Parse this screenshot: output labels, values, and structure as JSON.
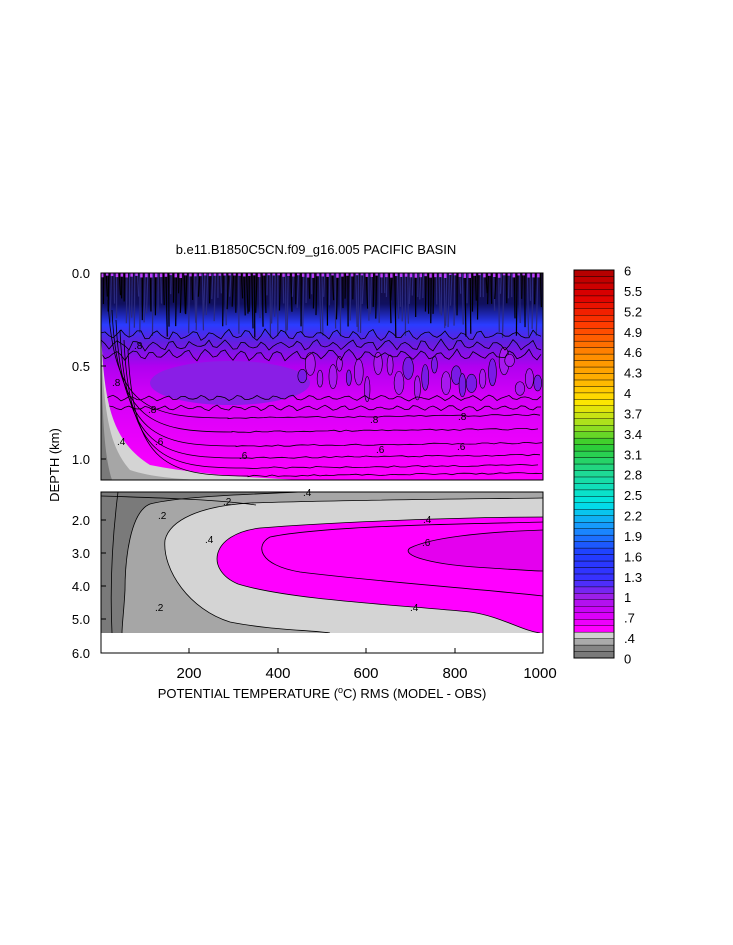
{
  "chart_data": {
    "type": "heatmap",
    "title": "b.e11.B1850C5CN.f09_g16.005 PACIFIC BASIN",
    "xlabel_before": "POTENTIAL TEMPERATURE (",
    "xlabel_unit_sup": "o",
    "xlabel_after": "C) RMS (MODEL - OBS)",
    "ylabel": "DEPTH (km)",
    "x_ticks": [
      "200",
      "400",
      "600",
      "800",
      "1000"
    ],
    "x_tick_values": [
      200,
      400,
      600,
      800,
      1000
    ],
    "xlim": [
      0,
      1000
    ],
    "upper_panel": {
      "ylim_km": [
        0.0,
        1.15
      ],
      "y_ticks": [
        "0.0",
        "0.5",
        "1.0"
      ],
      "y_tick_values": [
        0.0,
        0.5,
        1.0
      ],
      "contour_labels": [
        ".8",
        ".8",
        ".8",
        ".8",
        ".8",
        ".6",
        ".6",
        ".6",
        ".6",
        ".4"
      ]
    },
    "lower_panel": {
      "ylim_km": [
        1.15,
        6.0
      ],
      "y_ticks": [
        "2.0",
        "3.0",
        "4.0",
        "5.0",
        "6.0"
      ],
      "y_tick_values": [
        2.0,
        3.0,
        4.0,
        5.0,
        6.0
      ],
      "contour_labels": [
        ".2",
        ".2",
        ".2",
        ".4",
        ".4",
        ".4",
        ".4",
        ".6"
      ]
    },
    "colorbar": {
      "labels": [
        "6",
        "5.5",
        "5.2",
        "4.9",
        "4.6",
        "4.3",
        "4",
        "3.7",
        "3.4",
        "3.1",
        "2.8",
        "2.5",
        "2.2",
        "1.9",
        "1.6",
        "1.3",
        "1",
        ".7",
        ".4",
        "0"
      ],
      "label_values": [
        6,
        5.5,
        5.2,
        4.9,
        4.6,
        4.3,
        4,
        3.7,
        3.4,
        3.1,
        2.8,
        2.5,
        2.2,
        1.9,
        1.6,
        1.3,
        1,
        0.7,
        0.4,
        0
      ],
      "colors": {
        "gray_dark": "#7a7a7a",
        "gray_mid": "#a6a6a6",
        "gray_light": "#d4d4d4",
        "magenta": "#ff00ff",
        "purple": "#9a20e8",
        "blue": "#1f3cff",
        "cyan": "#00e5e5",
        "green": "#2ecc2e",
        "yellow": "#ffe600",
        "orange": "#ff8c00",
        "red": "#e00000",
        "dark_red": "#b00000"
      }
    }
  }
}
